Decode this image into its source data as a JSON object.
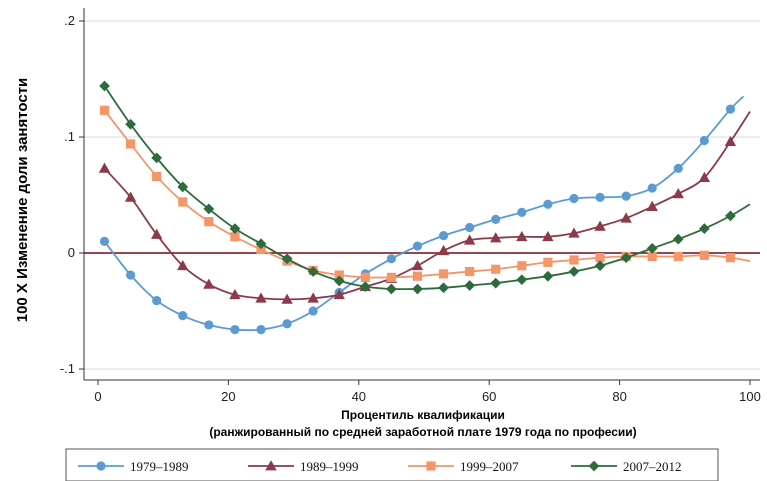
{
  "chart_data": {
    "type": "line",
    "title": "",
    "xlabel": "Процентиль квалификации",
    "xlabel_sub": "(ранжированный по средней заработной плате 1979 года по професии)",
    "ylabel": "100 X Изменение доли занятости",
    "xlim": [
      0,
      100
    ],
    "ylim": [
      -0.1,
      0.2
    ],
    "x_ticks": [
      {
        "value": 0,
        "label": "0"
      },
      {
        "value": 20,
        "label": "20"
      },
      {
        "value": 40,
        "label": "40"
      },
      {
        "value": 60,
        "label": "60"
      },
      {
        "value": 80,
        "label": "80"
      },
      {
        "value": 100,
        "label": "100"
      }
    ],
    "y_ticks": [
      {
        "value": 0.2,
        "label": ".2"
      },
      {
        "value": 0.1,
        "label": ".1"
      },
      {
        "value": 0,
        "label": "0"
      },
      {
        "value": -0.1,
        "label": "-.1"
      }
    ],
    "grid": "horizontal",
    "zero_line": true,
    "legend_position": "bottom",
    "colors": {
      "zero_line": "#8b2a35",
      "grid": "#d8d8d8"
    },
    "series": [
      {
        "name": "1979–1989",
        "color": "#5b9bd1",
        "marker": "circle",
        "x": [
          1,
          5,
          9,
          13,
          17,
          21,
          25,
          29,
          33,
          37,
          41,
          45,
          49,
          53,
          57,
          61,
          65,
          69,
          73,
          77,
          81,
          85,
          89,
          93,
          97,
          99
        ],
        "y": [
          0.01,
          -0.019,
          -0.041,
          -0.054,
          -0.062,
          -0.066,
          -0.066,
          -0.061,
          -0.05,
          -0.034,
          -0.018,
          -0.005,
          0.006,
          0.015,
          0.022,
          0.029,
          0.035,
          0.042,
          0.047,
          0.048,
          0.049,
          0.056,
          0.073,
          0.097,
          0.124,
          0.135
        ]
      },
      {
        "name": "1989–1999",
        "color": "#8b3a4a",
        "marker": "triangle",
        "x": [
          1,
          5,
          9,
          13,
          17,
          21,
          25,
          29,
          33,
          37,
          41,
          45,
          49,
          53,
          57,
          61,
          65,
          69,
          73,
          77,
          81,
          85,
          89,
          93,
          97,
          100
        ],
        "y": [
          0.073,
          0.048,
          0.016,
          -0.011,
          -0.027,
          -0.036,
          -0.039,
          -0.04,
          -0.039,
          -0.036,
          -0.029,
          -0.022,
          -0.011,
          0.002,
          0.011,
          0.013,
          0.014,
          0.014,
          0.017,
          0.023,
          0.03,
          0.04,
          0.051,
          0.065,
          0.096,
          0.122
        ]
      },
      {
        "name": "1999–2007",
        "color": "#f4956a",
        "marker": "square",
        "x": [
          1,
          5,
          9,
          13,
          17,
          21,
          25,
          29,
          33,
          37,
          41,
          45,
          49,
          53,
          57,
          61,
          65,
          69,
          73,
          77,
          81,
          85,
          89,
          93,
          97,
          100
        ],
        "y": [
          0.123,
          0.094,
          0.066,
          0.044,
          0.027,
          0.014,
          0.003,
          -0.007,
          -0.015,
          -0.019,
          -0.021,
          -0.021,
          -0.02,
          -0.018,
          -0.016,
          -0.014,
          -0.011,
          -0.008,
          -0.006,
          -0.004,
          -0.003,
          -0.003,
          -0.003,
          -0.002,
          -0.004,
          -0.007
        ]
      },
      {
        "name": "2007–2012",
        "color": "#2e6b3c",
        "marker": "diamond",
        "x": [
          1,
          5,
          9,
          13,
          17,
          21,
          25,
          29,
          33,
          37,
          41,
          45,
          49,
          53,
          57,
          61,
          65,
          69,
          73,
          77,
          81,
          85,
          89,
          93,
          97,
          100
        ],
        "y": [
          0.144,
          0.111,
          0.082,
          0.057,
          0.038,
          0.021,
          0.008,
          -0.005,
          -0.016,
          -0.024,
          -0.029,
          -0.031,
          -0.031,
          -0.03,
          -0.028,
          -0.026,
          -0.023,
          -0.02,
          -0.016,
          -0.011,
          -0.004,
          0.004,
          0.012,
          0.021,
          0.032,
          0.042
        ]
      }
    ]
  }
}
